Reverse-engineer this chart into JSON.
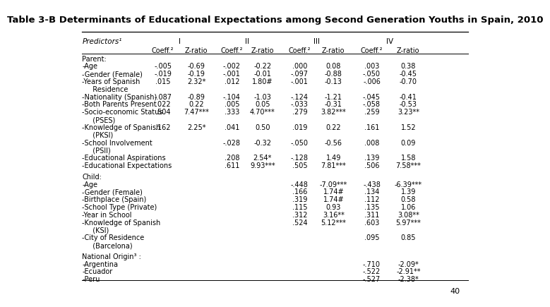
{
  "title": "Table 3-B Determinants of Educational Expectations among Second Generation Youths in Spain, 2010",
  "title_fontsize": 9.5,
  "bg_color": "#ffffff",
  "rows": [
    {
      "label": "Parent:",
      "indent": 0,
      "c1": "",
      "c2": "",
      "c3": "",
      "c4": "",
      "c5": "",
      "c6": "",
      "c7": "",
      "c8": "",
      "is_section": true
    },
    {
      "label": "-Age",
      "indent": 0,
      "c1": "-.005",
      "c2": "-0.69",
      "c3": "-.002",
      "c4": "-0.22",
      "c5": ".000",
      "c6": "0.08",
      "c7": ".003",
      "c8": "0.38"
    },
    {
      "label": "-Gender (Female)",
      "indent": 0,
      "c1": "-.019",
      "c2": "-0.19",
      "c3": "-.001",
      "c4": "-0.01",
      "c5": "-.097",
      "c6": "-0.88",
      "c7": "-.050",
      "c8": "-0.45"
    },
    {
      "label": "-Years of Spanish",
      "indent": 0,
      "c1": ".015",
      "c2": "2.32*",
      "c3": ".012",
      "c4": "1.80#",
      "c5": "-.001",
      "c6": "-0.13",
      "c7": "-.006",
      "c8": "-0.70"
    },
    {
      "label": "  Residence",
      "indent": 1,
      "c1": "",
      "c2": "",
      "c3": "",
      "c4": "",
      "c5": "",
      "c6": "",
      "c7": "",
      "c8": ""
    },
    {
      "label": "-Nationality (Spanish)",
      "indent": 0,
      "c1": "-.087",
      "c2": "-0.89",
      "c3": "-.104",
      "c4": "-1.03",
      "c5": "-.124",
      "c6": "-1.21",
      "c7": "-.045",
      "c8": "-0.41"
    },
    {
      "label": "-Both Parents Present",
      "indent": 0,
      "c1": ".022",
      "c2": "0.22",
      "c3": ".005",
      "c4": "0.05",
      "c5": "-.033",
      "c6": "-0.31",
      "c7": "-.058",
      "c8": "-0.53"
    },
    {
      "label": "-Socio-economic Status",
      "indent": 0,
      "c1": ".504",
      "c2": "7.47***",
      "c3": ".333",
      "c4": "4.70***",
      "c5": ".279",
      "c6": "3.82***",
      "c7": ".259",
      "c8": "3.23**"
    },
    {
      "label": "  (PSES)",
      "indent": 1,
      "c1": "",
      "c2": "",
      "c3": "",
      "c4": "",
      "c5": "",
      "c6": "",
      "c7": "",
      "c8": ""
    },
    {
      "label": "-Knowledge of Spanish",
      "indent": 0,
      "c1": ".162",
      "c2": "2.25*",
      "c3": ".041",
      "c4": "0.50",
      "c5": ".019",
      "c6": "0.22",
      "c7": ".161",
      "c8": "1.52"
    },
    {
      "label": "  (PKSI)",
      "indent": 1,
      "c1": "",
      "c2": "",
      "c3": "",
      "c4": "",
      "c5": "",
      "c6": "",
      "c7": "",
      "c8": ""
    },
    {
      "label": "-School Involvement",
      "indent": 0,
      "c1": "",
      "c2": "",
      "c3": "-.028",
      "c4": "-0.32",
      "c5": "-.050",
      "c6": "-0.56",
      "c7": ".008",
      "c8": "0.09"
    },
    {
      "label": "  (PSII)",
      "indent": 1,
      "c1": "",
      "c2": "",
      "c3": "",
      "c4": "",
      "c5": "",
      "c6": "",
      "c7": "",
      "c8": ""
    },
    {
      "label": "-Educational Aspirations",
      "indent": 0,
      "c1": "",
      "c2": "",
      "c3": ".208",
      "c4": "2.54*",
      "c5": "-.128",
      "c6": "1.49",
      "c7": ".139",
      "c8": "1.58"
    },
    {
      "label": "-Educational Expectations",
      "indent": 0,
      "c1": "",
      "c2": "",
      "c3": ".611",
      "c4": "9.93***",
      "c5": ".505",
      "c6": "7.81***",
      "c7": ".506",
      "c8": "7.58***"
    },
    {
      "label": "",
      "indent": 0,
      "c1": "",
      "c2": "",
      "c3": "",
      "c4": "",
      "c5": "",
      "c6": "",
      "c7": "",
      "c8": "",
      "is_spacer": true
    },
    {
      "label": "Child:",
      "indent": 0,
      "c1": "",
      "c2": "",
      "c3": "",
      "c4": "",
      "c5": "",
      "c6": "",
      "c7": "",
      "c8": "",
      "is_section": true
    },
    {
      "label": "-Age",
      "indent": 0,
      "c1": "",
      "c2": "",
      "c3": "",
      "c4": "",
      "c5": "-.448",
      "c6": "-7.09***",
      "c7": "-.438",
      "c8": "-6.39***"
    },
    {
      "label": "-Gender (Female)",
      "indent": 0,
      "c1": "",
      "c2": "",
      "c3": "",
      "c4": "",
      "c5": ".166",
      "c6": "1.74#",
      "c7": ".134",
      "c8": "1.39"
    },
    {
      "label": "-Birthplace (Spain)",
      "indent": 0,
      "c1": "",
      "c2": "",
      "c3": "",
      "c4": "",
      "c5": ".319",
      "c6": "1.74#",
      "c7": ".112",
      "c8": "0.58"
    },
    {
      "label": "-School Type (Private)",
      "indent": 0,
      "c1": "",
      "c2": "",
      "c3": "",
      "c4": "",
      "c5": ".115",
      "c6": "0.93",
      "c7": ".135",
      "c8": "1.06"
    },
    {
      "label": "-Year in School",
      "indent": 0,
      "c1": "",
      "c2": "",
      "c3": "",
      "c4": "",
      "c5": ".312",
      "c6": "3.16**",
      "c7": ".311",
      "c8": "3.08**"
    },
    {
      "label": "-Knowledge of Spanish",
      "indent": 0,
      "c1": "",
      "c2": "",
      "c3": "",
      "c4": "",
      "c5": ".524",
      "c6": "5.12***",
      "c7": ".603",
      "c8": "5.97***"
    },
    {
      "label": "  (KSI)",
      "indent": 1,
      "c1": "",
      "c2": "",
      "c3": "",
      "c4": "",
      "c5": "",
      "c6": "",
      "c7": "",
      "c8": ""
    },
    {
      "label": "-City of Residence",
      "indent": 0,
      "c1": "",
      "c2": "",
      "c3": "",
      "c4": "",
      "c5": "",
      "c6": "",
      "c7": ".095",
      "c8": "0.85"
    },
    {
      "label": "  (Barcelona)",
      "indent": 1,
      "c1": "",
      "c2": "",
      "c3": "",
      "c4": "",
      "c5": "",
      "c6": "",
      "c7": "",
      "c8": ""
    },
    {
      "label": "",
      "indent": 0,
      "c1": "",
      "c2": "",
      "c3": "",
      "c4": "",
      "c5": "",
      "c6": "",
      "c7": "",
      "c8": "",
      "is_spacer": true
    },
    {
      "label": "National Origin³ :",
      "indent": 0,
      "c1": "",
      "c2": "",
      "c3": "",
      "c4": "",
      "c5": "",
      "c6": "",
      "c7": "",
      "c8": "",
      "is_section": true
    },
    {
      "label": "-Argentina",
      "indent": 0,
      "c1": "",
      "c2": "",
      "c3": "",
      "c4": "",
      "c5": "",
      "c6": "",
      "c7": "-.710",
      "c8": "-2.09*"
    },
    {
      "label": "-Ecuador",
      "indent": 0,
      "c1": "",
      "c2": "",
      "c3": "",
      "c4": "",
      "c5": "",
      "c6": "",
      "c7": "-.522",
      "c8": "-2.91**"
    },
    {
      "label": "-Peru",
      "indent": 0,
      "c1": "",
      "c2": "",
      "c3": "",
      "c4": "",
      "c5": "",
      "c6": "",
      "c7": "-.527",
      "c8": "-2.38*"
    }
  ],
  "col_x": {
    "label": 0.01,
    "c1": 0.215,
    "c2": 0.3,
    "c3": 0.39,
    "c4": 0.468,
    "c5": 0.562,
    "c6": 0.648,
    "c7": 0.745,
    "c8": 0.838
  },
  "page_number": "40"
}
